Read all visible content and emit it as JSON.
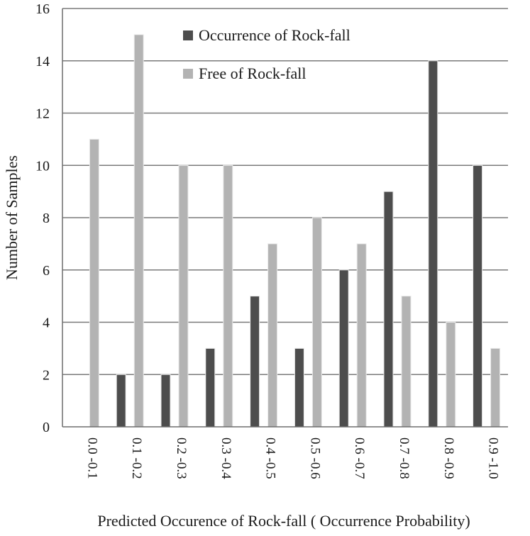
{
  "chart_data": {
    "type": "bar",
    "title": "",
    "xlabel": "Predicted Occurence  of Rock-fall ( Occurrence Probability)",
    "ylabel": "Number of Samples",
    "ylim": [
      0,
      16
    ],
    "yticks": [
      0,
      2,
      4,
      6,
      8,
      10,
      12,
      14,
      16
    ],
    "grid": true,
    "legend_position": "top-center",
    "categories": [
      "0.0 -0.1",
      "0.1 -0.2",
      "0.2 -0.3",
      "0.3 -0.4",
      "0.4 -0.5",
      "0.5 -0.6",
      "0.6 -0.7",
      "0.7 -0.8",
      "0.8 -0.9",
      "0.9 -1.0"
    ],
    "series": [
      {
        "name": "Occurrence of Rock-fall",
        "color": "#4d4d4d",
        "values": [
          0,
          2,
          2,
          3,
          5,
          3,
          6,
          9,
          14,
          10
        ]
      },
      {
        "name": "Free of Rock-fall",
        "color": "#b3b3b3",
        "values": [
          11,
          15,
          10,
          10,
          7,
          8,
          7,
          5,
          4,
          3
        ]
      }
    ]
  }
}
